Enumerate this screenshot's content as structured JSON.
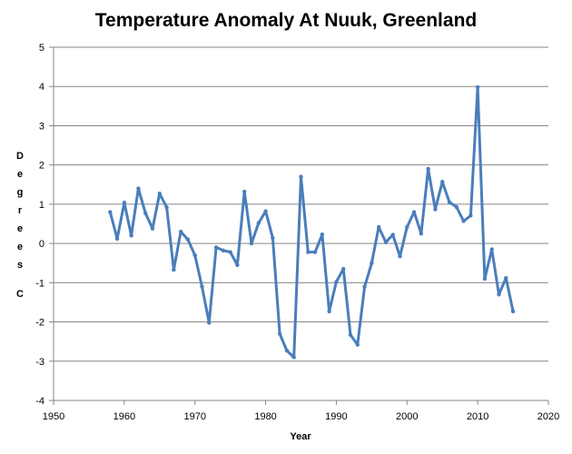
{
  "chart_data": {
    "type": "line",
    "title": "Temperature Anomaly At Nuuk, Greenland",
    "xlabel": "Year",
    "ylabel": "Degrees C",
    "xlim": [
      1950,
      2020
    ],
    "ylim": [
      -4,
      5
    ],
    "x_ticks": [
      1950,
      1960,
      1970,
      1980,
      1990,
      2000,
      2010,
      2020
    ],
    "y_ticks": [
      -4,
      -3,
      -2,
      -1,
      0,
      1,
      2,
      3,
      4,
      5
    ],
    "grid": true,
    "legend": "none",
    "series": [
      {
        "name": "Temperature Anomaly",
        "color": "#4a7ebb",
        "x": [
          1958,
          1959,
          1960,
          1961,
          1962,
          1963,
          1964,
          1965,
          1966,
          1967,
          1968,
          1969,
          1970,
          1971,
          1972,
          1973,
          1974,
          1975,
          1976,
          1977,
          1978,
          1979,
          1980,
          1981,
          1982,
          1983,
          1984,
          1985,
          1986,
          1987,
          1988,
          1989,
          1990,
          1991,
          1992,
          1993,
          1994,
          1995,
          1996,
          1997,
          1998,
          1999,
          2000,
          2001,
          2002,
          2003,
          2004,
          2005,
          2006,
          2007,
          2008,
          2009,
          2010,
          2011,
          2012,
          2013,
          2014,
          2015
        ],
        "values": [
          0.8,
          0.12,
          1.04,
          0.2,
          1.4,
          0.77,
          0.38,
          1.27,
          0.92,
          -0.67,
          0.3,
          0.1,
          -0.3,
          -1.1,
          -2.02,
          -0.1,
          -0.18,
          -0.22,
          -0.55,
          1.32,
          0.0,
          0.52,
          0.82,
          0.14,
          -2.3,
          -2.73,
          -2.9,
          1.7,
          -0.22,
          -0.22,
          0.23,
          -1.73,
          -0.98,
          -0.65,
          -2.33,
          -2.58,
          -1.1,
          -0.5,
          0.42,
          0.03,
          0.22,
          -0.33,
          0.42,
          0.8,
          0.25,
          1.9,
          0.87,
          1.57,
          1.05,
          0.93,
          0.57,
          0.71,
          3.98,
          -0.9,
          -0.15,
          -1.3,
          -0.88,
          -1.73
        ]
      }
    ]
  }
}
